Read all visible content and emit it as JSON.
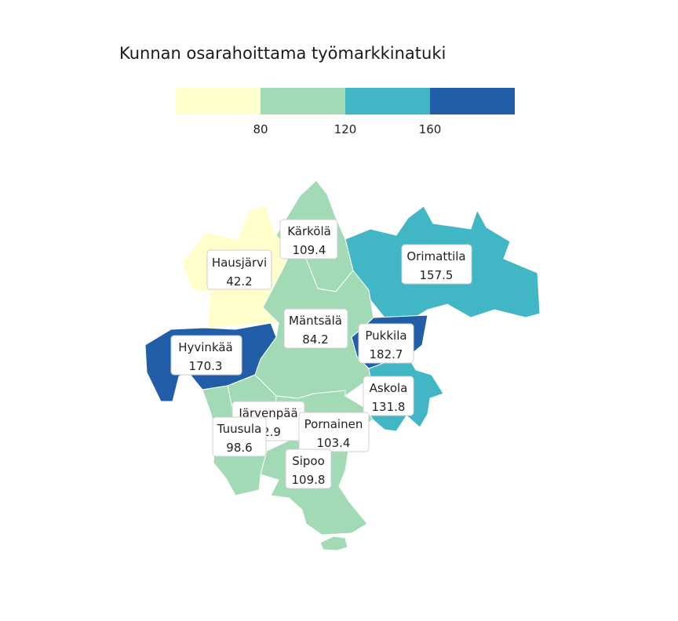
{
  "title": "Kunnan osarahoittama työmarkkinatuki",
  "legend": {
    "bins": [
      {
        "color": "#ffffcc",
        "from": null,
        "to": 80
      },
      {
        "color": "#a1dab4",
        "from": 80,
        "to": 120
      },
      {
        "color": "#41b6c4",
        "from": 120,
        "to": 160
      },
      {
        "color": "#225ea8",
        "from": 160,
        "to": null
      }
    ],
    "ticks": [
      "80",
      "120",
      "160"
    ]
  },
  "chart_data": {
    "type": "choropleth",
    "title": "Kunnan osarahoittama työmarkkinatuki",
    "regions": [
      {
        "name": "Kärkölä",
        "value": "109.4"
      },
      {
        "name": "Hausjärvi",
        "value": "42.2"
      },
      {
        "name": "Orimattila",
        "value": "157.5"
      },
      {
        "name": "Mäntsälä",
        "value": "84.2"
      },
      {
        "name": "Hyvinkää",
        "value": "170.3"
      },
      {
        "name": "Pukkila",
        "value": "182.7"
      },
      {
        "name": "Askola",
        "value": "131.8"
      },
      {
        "name": "Järvenpää",
        "value": "?2.9"
      },
      {
        "name": "Tuusula",
        "value": "98.6"
      },
      {
        "name": "Pornainen",
        "value": "103.4"
      },
      {
        "name": "Sipoo",
        "value": "109.8"
      }
    ]
  }
}
